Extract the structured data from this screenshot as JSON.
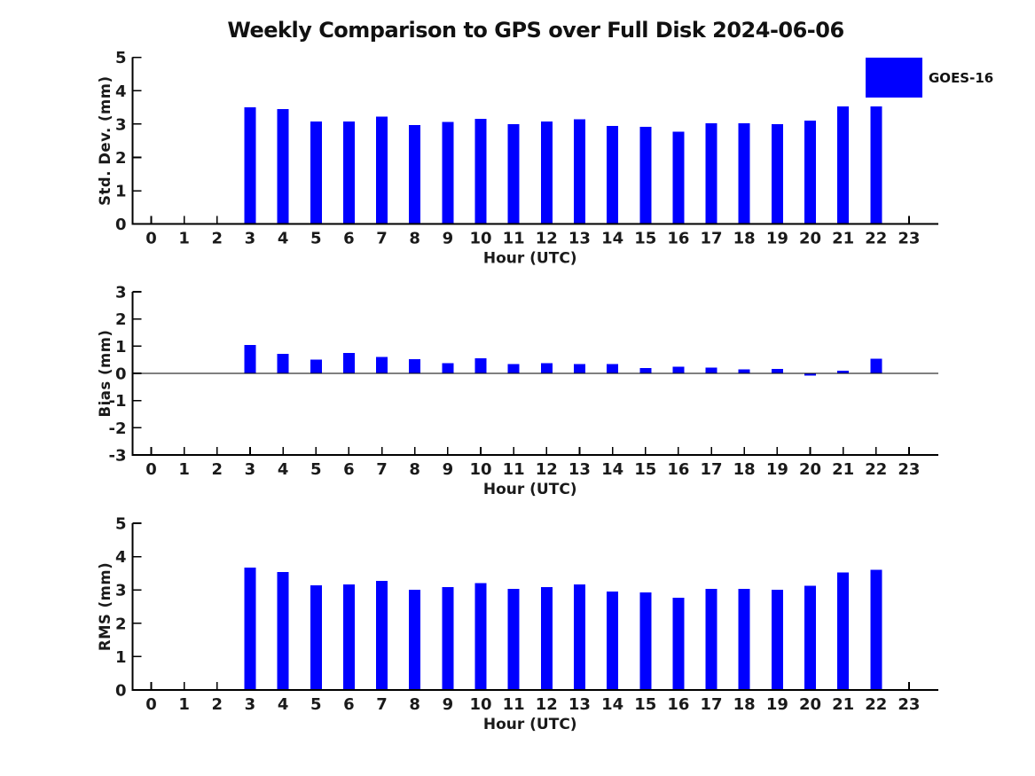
{
  "figure": {
    "title": "Weekly Comparison to GPS over Full Disk 2024-06-06"
  },
  "legend": {
    "label": "GOES-16",
    "swatch_color": "#0000ff"
  },
  "colors": {
    "bar": "#0000ff",
    "axis": "#000000",
    "text": "#1a1a1a",
    "background": "#ffffff"
  },
  "chart_data": [
    {
      "type": "bar",
      "title": "",
      "xlabel": "Hour (UTC)",
      "ylabel": "Std. Dev. (mm)",
      "ylim": [
        0,
        5
      ],
      "yticks": [
        0,
        1,
        2,
        3,
        4,
        5
      ],
      "categories": [
        "0",
        "1",
        "2",
        "3",
        "4",
        "5",
        "6",
        "7",
        "8",
        "9",
        "10",
        "11",
        "12",
        "13",
        "14",
        "15",
        "16",
        "17",
        "18",
        "19",
        "20",
        "21",
        "22",
        "23"
      ],
      "grid": false,
      "zero_line": false,
      "legend_entry": "GOES-16",
      "legend_position": "upper-right",
      "series": [
        {
          "name": "GOES-16",
          "x": [
            3,
            4,
            5,
            6,
            7,
            8,
            9,
            10,
            11,
            12,
            13,
            14,
            15,
            16,
            17,
            18,
            19,
            20,
            21,
            22
          ],
          "values": [
            3.5,
            3.45,
            3.08,
            3.08,
            3.22,
            2.97,
            3.06,
            3.16,
            3.0,
            3.08,
            3.14,
            2.95,
            2.92,
            2.77,
            3.03,
            3.03,
            3.0,
            3.11,
            3.53,
            3.53
          ]
        }
      ]
    },
    {
      "type": "bar",
      "title": "",
      "xlabel": "Hour (UTC)",
      "ylabel": "Bias (mm)",
      "ylim": [
        -3,
        3
      ],
      "yticks": [
        -3,
        -2,
        -1,
        0,
        1,
        2,
        3
      ],
      "categories": [
        "0",
        "1",
        "2",
        "3",
        "4",
        "5",
        "6",
        "7",
        "8",
        "9",
        "10",
        "11",
        "12",
        "13",
        "14",
        "15",
        "16",
        "17",
        "18",
        "19",
        "20",
        "21",
        "22",
        "23"
      ],
      "grid": false,
      "zero_line": true,
      "series": [
        {
          "name": "GOES-16",
          "x": [
            3,
            4,
            5,
            6,
            7,
            8,
            9,
            10,
            11,
            12,
            13,
            14,
            15,
            16,
            17,
            18,
            19,
            20,
            21,
            22
          ],
          "values": [
            1.04,
            0.72,
            0.51,
            0.75,
            0.6,
            0.52,
            0.37,
            0.55,
            0.35,
            0.37,
            0.34,
            0.34,
            0.2,
            0.24,
            0.22,
            0.15,
            0.17,
            -0.08,
            0.1,
            0.53
          ]
        }
      ]
    },
    {
      "type": "bar",
      "title": "",
      "xlabel": "Hour (UTC)",
      "ylabel": "RMS (mm)",
      "ylim": [
        0,
        5
      ],
      "yticks": [
        0,
        1,
        2,
        3,
        4,
        5
      ],
      "categories": [
        "0",
        "1",
        "2",
        "3",
        "4",
        "5",
        "6",
        "7",
        "8",
        "9",
        "10",
        "11",
        "12",
        "13",
        "14",
        "15",
        "16",
        "17",
        "18",
        "19",
        "20",
        "21",
        "22",
        "23"
      ],
      "grid": false,
      "zero_line": false,
      "series": [
        {
          "name": "GOES-16",
          "x": [
            3,
            4,
            5,
            6,
            7,
            8,
            9,
            10,
            11,
            12,
            13,
            14,
            15,
            16,
            17,
            18,
            19,
            20,
            21,
            22
          ],
          "values": [
            3.67,
            3.54,
            3.14,
            3.16,
            3.27,
            3.01,
            3.09,
            3.21,
            3.03,
            3.09,
            3.16,
            2.95,
            2.93,
            2.77,
            3.03,
            3.03,
            3.01,
            3.12,
            3.53,
            3.6
          ]
        }
      ]
    }
  ]
}
